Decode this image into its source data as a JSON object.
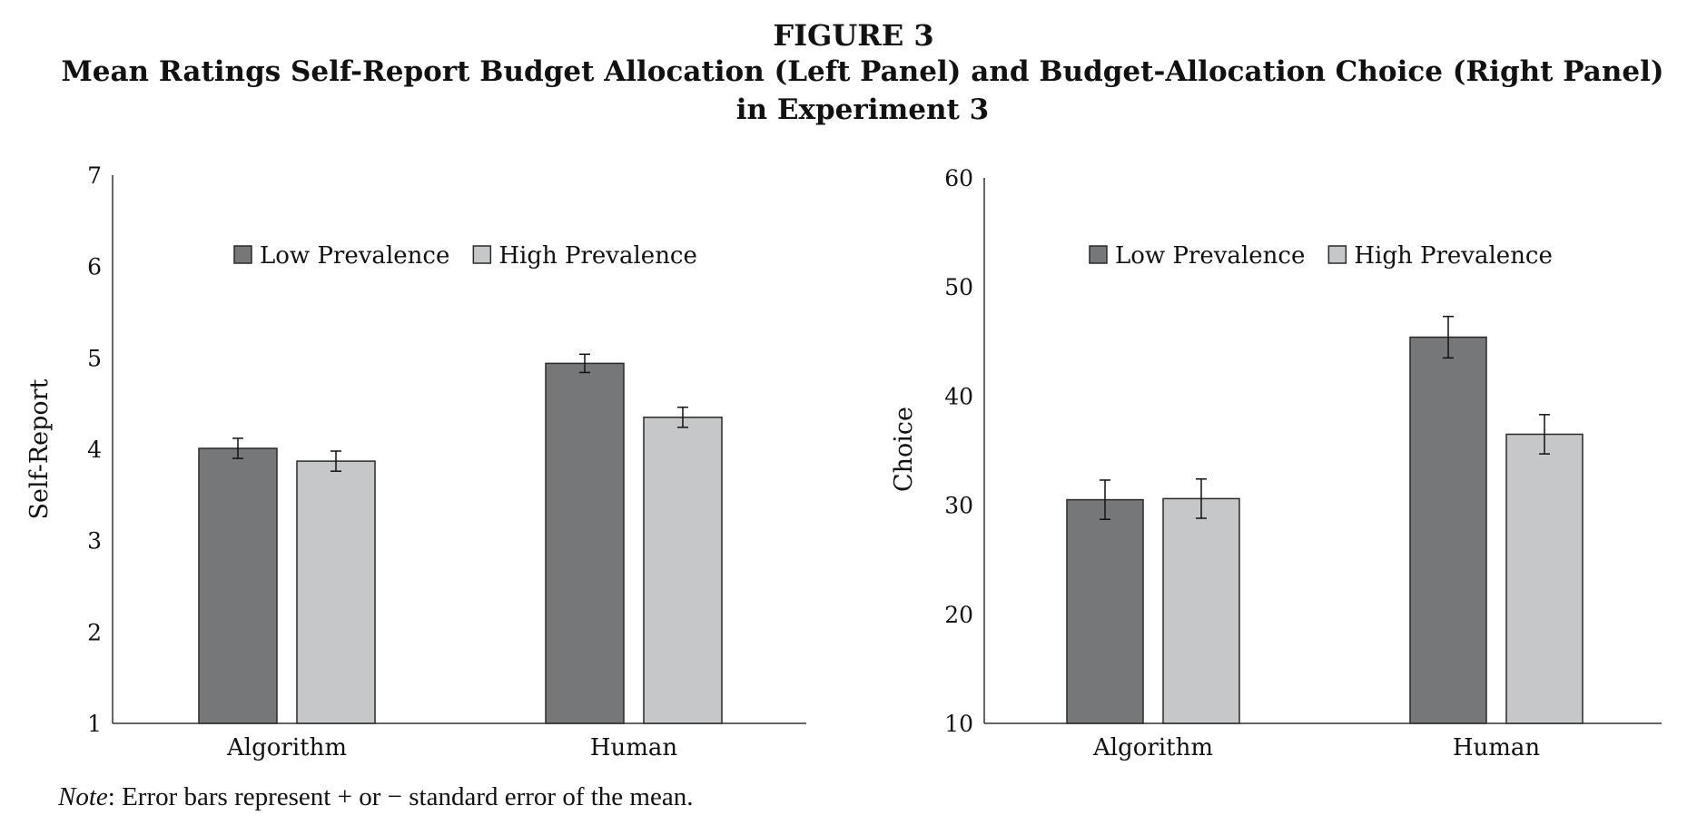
{
  "figure": {
    "label": "FIGURE 3",
    "title": "Mean Ratings Self-Report Budget Allocation (Left Panel) and Budget-Allocation Choice (Right Panel) in Experiment 3"
  },
  "note": {
    "label": "Note",
    "text": ": Error bars represent + or − standard error of the mean."
  },
  "colors": {
    "low": "#767779",
    "high": "#c6c7c9",
    "outline": "#2a2a2a",
    "axis": "#333333"
  },
  "chart_data": [
    {
      "type": "bar",
      "panel": "left",
      "title": "",
      "xlabel": "",
      "ylabel": "Self-Report",
      "ylim": [
        1,
        7
      ],
      "yticks": [
        1,
        2,
        3,
        4,
        5,
        6,
        7
      ],
      "categories": [
        "Algorithm",
        "Human"
      ],
      "series": [
        {
          "name": "Low Prevalence",
          "values": [
            4.01,
            4.94
          ],
          "errors": [
            0.11,
            0.1
          ]
        },
        {
          "name": "High Prevalence",
          "values": [
            3.87,
            4.35
          ],
          "errors": [
            0.11,
            0.11
          ]
        }
      ],
      "legend": "top-center",
      "grid": false
    },
    {
      "type": "bar",
      "panel": "right",
      "title": "",
      "xlabel": "",
      "ylabel": "Choice",
      "ylim": [
        10,
        60
      ],
      "yticks": [
        10,
        20,
        30,
        40,
        50,
        60
      ],
      "categories": [
        "Algorithm",
        "Human"
      ],
      "series": [
        {
          "name": "Low Prevalence",
          "values": [
            30.5,
            45.4
          ],
          "errors": [
            1.8,
            1.9
          ]
        },
        {
          "name": "High Prevalence",
          "values": [
            30.6,
            36.5
          ],
          "errors": [
            1.8,
            1.8
          ]
        }
      ],
      "legend": "top-center",
      "grid": false
    }
  ]
}
